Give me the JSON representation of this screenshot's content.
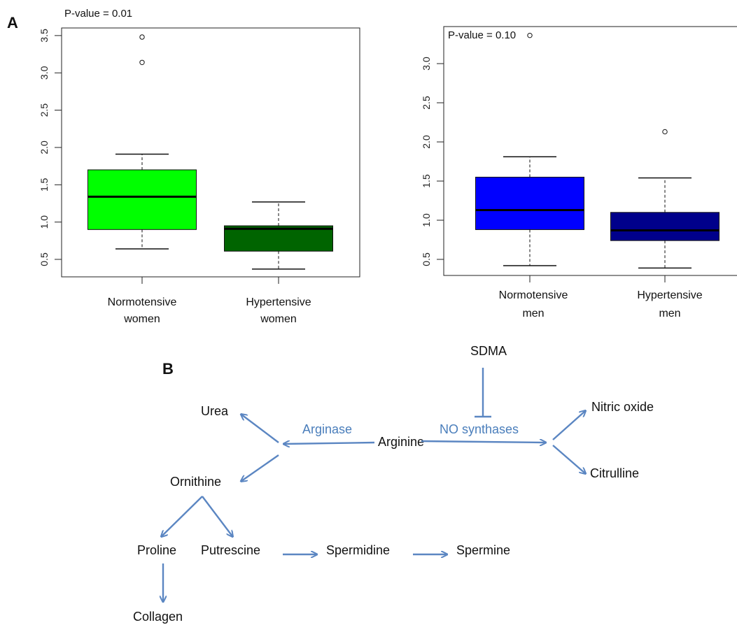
{
  "panel_a_label": "A",
  "panel_b_label": "B",
  "chart_data": [
    {
      "type": "box",
      "title": "P-value = 0.01",
      "ylim": [
        0.3,
        3.6
      ],
      "yticks": [
        "0.5",
        "1.0",
        "1.5",
        "2.0",
        "2.5",
        "3.0",
        "3.5"
      ],
      "categories": [
        [
          "Normotensive",
          "women"
        ],
        [
          "Hypertensive",
          "women"
        ]
      ],
      "boxes": [
        {
          "whisker_low": 0.64,
          "q1": 0.9,
          "median": 1.34,
          "q3": 1.7,
          "whisker_high": 1.91,
          "outliers": [
            3.14,
            3.48
          ],
          "color": "#00ff00"
        },
        {
          "whisker_low": 0.37,
          "q1": 0.61,
          "median": 0.91,
          "q3": 0.95,
          "whisker_high": 1.27,
          "outliers": [],
          "color": "#006400"
        }
      ]
    },
    {
      "type": "box",
      "title": "P-value = 0.10",
      "ylim": [
        0.3,
        3.4
      ],
      "yticks": [
        "0.5",
        "1.0",
        "1.5",
        "2.0",
        "2.5",
        "3.0"
      ],
      "categories": [
        [
          "Normotensive",
          "men"
        ],
        [
          "Hypertensive",
          "men"
        ]
      ],
      "boxes": [
        {
          "whisker_low": 0.42,
          "q1": 0.88,
          "median": 1.13,
          "q3": 1.55,
          "whisker_high": 1.81,
          "outliers": [
            3.36
          ],
          "color": "#0000ff"
        },
        {
          "whisker_low": 0.39,
          "q1": 0.74,
          "median": 0.87,
          "q3": 1.1,
          "whisker_high": 1.54,
          "outliers": [
            2.13
          ],
          "color": "#00008b"
        }
      ]
    }
  ],
  "pathway": {
    "nodes": {
      "sdma": "SDMA",
      "urea": "Urea",
      "arginine": "Arginine",
      "nitric_oxide": "Nitric oxide",
      "citrulline": "Citrulline",
      "ornithine": "Ornithine",
      "proline": "Proline",
      "putrescine": "Putrescine",
      "spermidine": "Spermidine",
      "spermine": "Spermine",
      "collagen": "Collagen"
    },
    "enzymes": {
      "arginase": "Arginase",
      "no_synthases": "NO synthases"
    },
    "arrow_color": "#5b86c2",
    "enzyme_color": "#4a7ebb"
  }
}
